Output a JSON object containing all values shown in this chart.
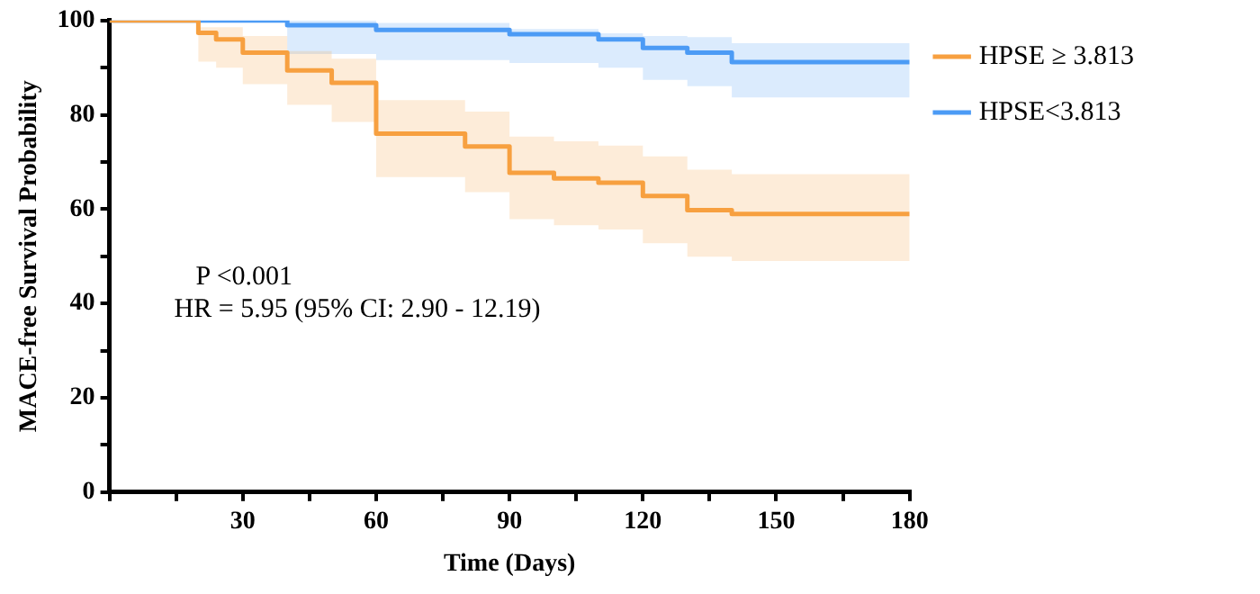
{
  "chart_data": {
    "type": "step",
    "xlabel": "Time (Days)",
    "ylabel": "MACE-free Survival Probability",
    "xlim": [
      0,
      180
    ],
    "xticks": [
      {
        "value": 0,
        "label": null
      },
      {
        "value": 15,
        "label": null
      },
      30,
      {
        "value": 45,
        "label": null
      },
      60,
      {
        "value": 75,
        "label": null
      },
      90,
      {
        "value": 105,
        "label": null
      },
      120,
      {
        "value": 135,
        "label": null
      },
      150,
      {
        "value": 165,
        "label": null
      },
      180
    ],
    "ylim": [
      0,
      100
    ],
    "yticks": [
      0,
      {
        "value": 10,
        "label": null
      },
      20,
      {
        "value": 30,
        "label": null
      },
      40,
      {
        "value": 50,
        "label": null
      },
      60,
      {
        "value": 70,
        "label": null
      },
      80,
      {
        "value": 90,
        "label": null
      },
      100
    ],
    "grid": false,
    "legend": "top right",
    "marker": "none",
    "line_style": "solid",
    "annotations": [
      "P <0.001",
      "HR = 5.95 (95% CI: 2.90 - 12.19)"
    ],
    "series": [
      {
        "name": "HPSE ≥ 3.813",
        "color": "#f7a040",
        "x": [
          0,
          20,
          24,
          30,
          40,
          50,
          60,
          80,
          90,
          100,
          110,
          120,
          130,
          140,
          180
        ],
        "values": [
          100,
          97.4,
          96,
          93.2,
          89.4,
          86.8,
          76,
          73.3,
          67.7,
          66.5,
          65.6,
          62.8,
          59.8,
          59,
          59
        ],
        "upper": [
          100,
          98.6,
          98.6,
          96.7,
          93.5,
          91.9,
          83.1,
          80.7,
          75.4,
          74.4,
          73.5,
          71.2,
          68.4,
          67.4,
          67.4
        ],
        "lower": [
          100,
          91.3,
          90,
          86.5,
          82.1,
          78.5,
          66.8,
          63.6,
          57.9,
          56.6,
          55.7,
          52.8,
          49.9,
          49,
          49
        ]
      },
      {
        "name": "HPSE<3.813",
        "color": "#4c9bf5",
        "x": [
          0,
          40,
          60,
          90,
          110,
          120,
          130,
          140,
          180
        ],
        "values": [
          100,
          99,
          98,
          97.1,
          96,
          94.2,
          93.2,
          91.2,
          91.2
        ],
        "upper": [
          100,
          100,
          99.5,
          98.2,
          97.3,
          96.7,
          96.5,
          95.2,
          95.2
        ],
        "lower": [
          100,
          92.9,
          91.6,
          91,
          90,
          87.4,
          86.1,
          83.7,
          83.7
        ]
      }
    ]
  }
}
